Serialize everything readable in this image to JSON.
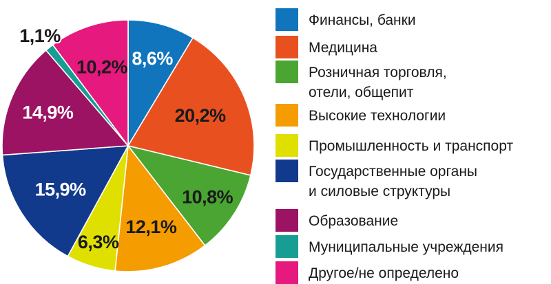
{
  "chart_data": {
    "type": "pie",
    "slices": [
      {
        "name": "Финансы, банки",
        "value": 8.6,
        "label": "8,6%",
        "color": "#1075bc",
        "label_color": "#ffffff"
      },
      {
        "name": "Медицина",
        "value": 20.2,
        "label": "20,2%",
        "color": "#e8511f",
        "label_color": "#1a1a1a"
      },
      {
        "name": "Розничная торговля, отели, общепит",
        "name_lines": [
          "Розничная торговля,",
          "отели, общепит"
        ],
        "value": 10.8,
        "label": "10,8%",
        "color": "#4aa532",
        "label_color": "#1a1a1a"
      },
      {
        "name": "Высокие технологии",
        "value": 12.1,
        "label": "12,1%",
        "color": "#f59c00",
        "label_color": "#1a1a1a"
      },
      {
        "name": "Промышленность и транспорт",
        "value": 6.3,
        "label": "6,3%",
        "color": "#dfe000",
        "label_color": "#1a1a1a"
      },
      {
        "name": "Государственные органы и силовые структуры",
        "name_lines": [
          "Государственные органы",
          "и силовые структуры"
        ],
        "value": 15.9,
        "label": "15,9%",
        "color": "#123a8c",
        "label_color": "#ffffff"
      },
      {
        "name": "Образование",
        "value": 14.9,
        "label": "14,9%",
        "color": "#9c1363",
        "label_color": "#ffffff"
      },
      {
        "name": "Муниципальные учреждения",
        "value": 1.1,
        "label": "1,1%",
        "color": "#169e94",
        "label_color": "#1a1a1a"
      },
      {
        "name": "Другое/не определено",
        "value": 10.2,
        "label": "10,2%",
        "color": "#e5197e",
        "label_color": "#1a1a1a"
      }
    ],
    "start_angle_deg": 0,
    "direction": "clockwise",
    "legend": "right"
  }
}
